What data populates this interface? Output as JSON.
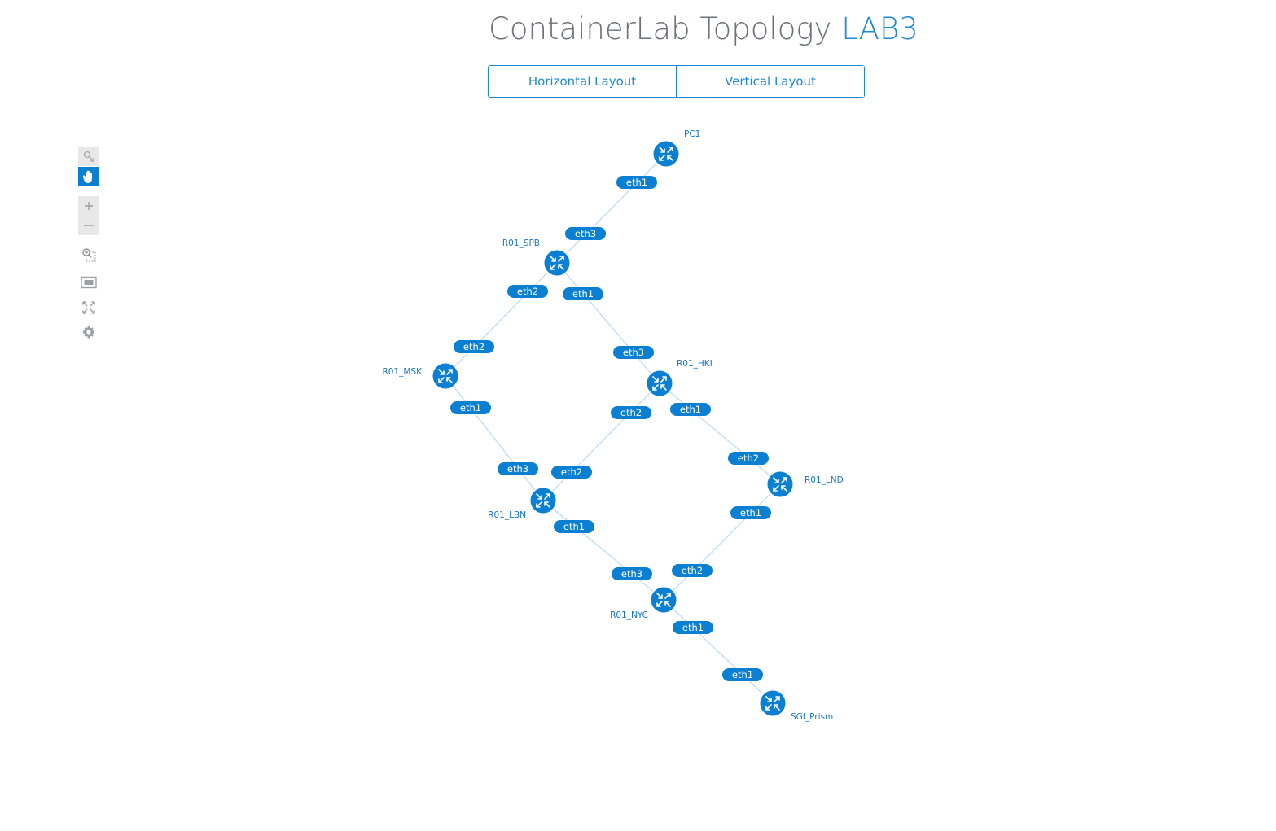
{
  "header": {
    "title_prefix": "ContainerLab Topology",
    "title_lab": "LAB3"
  },
  "layout_buttons": {
    "horizontal": "Horizontal Layout",
    "vertical": "Vertical Layout"
  },
  "toolbar": {
    "tools": [
      {
        "name": "select-tool-icon"
      },
      {
        "name": "pan-tool-icon",
        "active": true
      },
      {
        "name": "zoom-in-icon"
      },
      {
        "name": "zoom-out-icon"
      },
      {
        "name": "zoom-to-selection-icon"
      },
      {
        "name": "fit-to-screen-icon"
      },
      {
        "name": "fullscreen-icon"
      },
      {
        "name": "settings-gear-icon"
      }
    ]
  },
  "colors": {
    "accent": "#1e8ad6",
    "node_fill": "#0b7fd1",
    "link": "#c6dff5",
    "title": "#6b7178"
  },
  "topology": {
    "nodes": [
      {
        "id": "PC1",
        "label": "PC1"
      },
      {
        "id": "R01_SPB",
        "label": "R01_SPB"
      },
      {
        "id": "R01_MSK",
        "label": "R01_MSK"
      },
      {
        "id": "R01_HKI",
        "label": "R01_HKI"
      },
      {
        "id": "R01_LBN",
        "label": "R01_LBN"
      },
      {
        "id": "R01_LND",
        "label": "R01_LND"
      },
      {
        "id": "R01_NYC",
        "label": "R01_NYC"
      },
      {
        "id": "SGI_Prism",
        "label": "SGI_Prism"
      }
    ],
    "links": [
      {
        "a": "PC1",
        "a_if": "eth1",
        "b": "R01_SPB",
        "b_if": "eth3"
      },
      {
        "a": "R01_SPB",
        "a_if": "eth2",
        "b": "R01_MSK",
        "b_if": "eth2"
      },
      {
        "a": "R01_SPB",
        "a_if": "eth1",
        "b": "R01_HKI",
        "b_if": "eth3"
      },
      {
        "a": "R01_MSK",
        "a_if": "eth1",
        "b": "R01_LBN",
        "b_if": "eth3"
      },
      {
        "a": "R01_HKI",
        "a_if": "eth2",
        "b": "R01_LBN",
        "b_if": "eth2"
      },
      {
        "a": "R01_HKI",
        "a_if": "eth1",
        "b": "R01_LND",
        "b_if": "eth2"
      },
      {
        "a": "R01_LBN",
        "a_if": "eth1",
        "b": "R01_NYC",
        "b_if": "eth3"
      },
      {
        "a": "R01_LND",
        "a_if": "eth1",
        "b": "R01_NYC",
        "b_if": "eth2"
      },
      {
        "a": "R01_NYC",
        "a_if": "eth1",
        "b": "SGI_Prism",
        "b_if": "eth1"
      }
    ]
  }
}
